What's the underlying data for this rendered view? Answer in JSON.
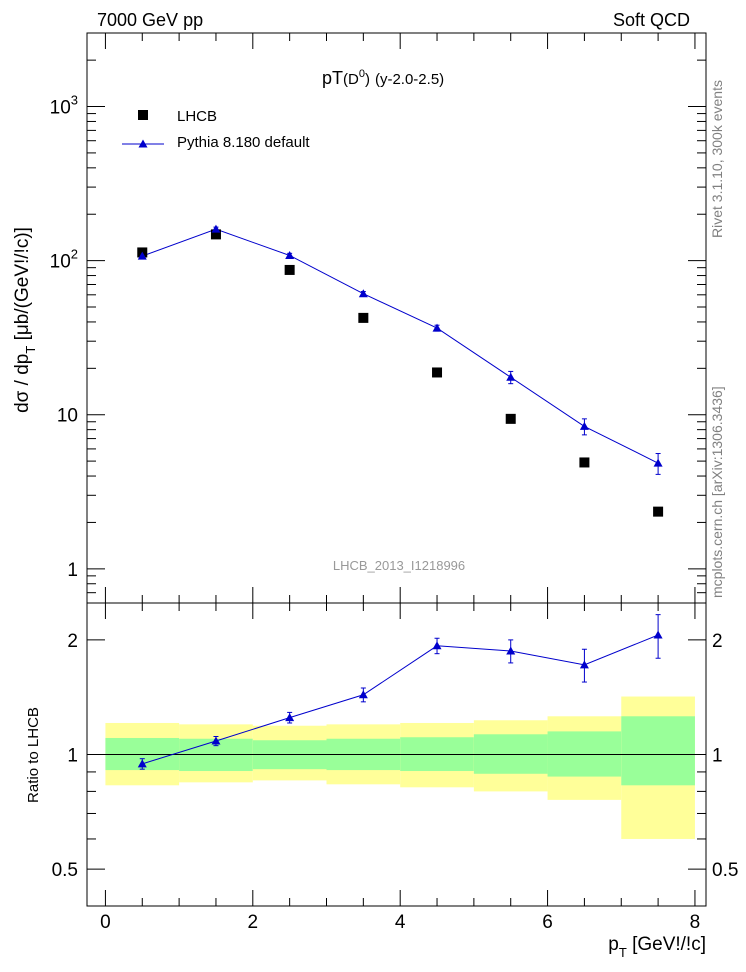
{
  "header": {
    "left": "7000 GeV pp",
    "right": "Soft QCD"
  },
  "side_text": {
    "rivet": "Rivet 3.1.10,  300k events",
    "mcplots": "mcplots.cern.ch [arXiv:1306.3436]"
  },
  "watermark": "LHCB_2013_I1218996",
  "colors": {
    "mc": "#0000cc",
    "data": "#000000",
    "band_inner": "#99ff99",
    "band_outer": "#ffff99"
  },
  "chart_data": [
    {
      "type": "scatter",
      "title_main": "pT",
      "title_paren": "(D",
      "title_sup": "0",
      "title_close": ")",
      "title_rest": "(y-2.0-2.5)",
      "ylabel": "dσ / dp  [μb/(GeV!/!c)]",
      "ylabel_main": "dσ / dp",
      "ylabel_sub": "T",
      "ylabel_rest": " [μb/(GeV!/!c)]",
      "yscale": "log",
      "ylim": [
        0.6,
        3000
      ],
      "xlim": [
        -0.25,
        8.15
      ],
      "yticks": [
        {
          "value": 1,
          "label": "1"
        },
        {
          "value": 10,
          "label": "10"
        },
        {
          "value": 100,
          "label": "10",
          "sup": "2"
        },
        {
          "value": 1000,
          "label": "10",
          "sup": "3"
        }
      ],
      "legend": [
        {
          "name": "LHCB",
          "marker": "square"
        },
        {
          "name": "Pythia 8.180 default",
          "marker": "triangle-line"
        }
      ],
      "series": [
        {
          "name": "LHCB",
          "x": [
            0.5,
            1.5,
            2.5,
            3.5,
            4.5,
            5.5,
            6.5,
            7.5
          ],
          "y": [
            113,
            148,
            87,
            42.5,
            18.8,
            9.4,
            4.9,
            2.35
          ]
        },
        {
          "name": "Pythia 8.180 default",
          "x": [
            0.5,
            1.5,
            2.5,
            3.5,
            4.5,
            5.5,
            6.5,
            7.5
          ],
          "y": [
            107,
            160,
            108,
            61,
            36.5,
            17.5,
            8.4,
            4.85
          ],
          "err": [
            4,
            5,
            3.5,
            2,
            1.6,
            1.6,
            1.0,
            0.75
          ]
        }
      ]
    },
    {
      "type": "scatter",
      "ylabel": "Ratio to LHCB",
      "yscale": "log",
      "ylim": [
        0.4,
        2.5
      ],
      "xlabel_main": "p",
      "xlabel_sub": "T",
      "xlabel_rest": " [GeV!/!c]",
      "xticks": [
        0,
        2,
        4,
        6,
        8
      ],
      "yticks": [
        {
          "value": 0.5,
          "label": "0.5"
        },
        {
          "value": 1,
          "label": "1"
        },
        {
          "value": 2,
          "label": "2"
        }
      ],
      "bands": {
        "bins": [
          [
            0,
            1
          ],
          [
            1,
            2
          ],
          [
            2,
            3
          ],
          [
            3,
            4
          ],
          [
            4,
            5
          ],
          [
            5,
            6
          ],
          [
            6,
            7
          ],
          [
            7,
            8
          ]
        ],
        "outer": [
          [
            0.83,
            1.21
          ],
          [
            0.845,
            1.2
          ],
          [
            0.855,
            1.19
          ],
          [
            0.835,
            1.2
          ],
          [
            0.82,
            1.21
          ],
          [
            0.8,
            1.23
          ],
          [
            0.76,
            1.26
          ],
          [
            0.6,
            1.42
          ]
        ],
        "inner": [
          [
            0.91,
            1.105
          ],
          [
            0.905,
            1.1
          ],
          [
            0.915,
            1.09
          ],
          [
            0.91,
            1.1
          ],
          [
            0.905,
            1.11
          ],
          [
            0.89,
            1.13
          ],
          [
            0.875,
            1.15
          ],
          [
            0.83,
            1.26
          ]
        ]
      },
      "series": [
        {
          "name": "Pythia 8.180 default ratio",
          "x": [
            0.5,
            1.5,
            2.5,
            3.5,
            4.5,
            5.5,
            6.5,
            7.5
          ],
          "y": [
            0.945,
            1.085,
            1.25,
            1.435,
            1.93,
            1.87,
            1.72,
            2.06
          ],
          "err": [
            0.03,
            0.03,
            0.04,
            0.06,
            0.09,
            0.13,
            0.17,
            0.27
          ]
        }
      ]
    }
  ]
}
